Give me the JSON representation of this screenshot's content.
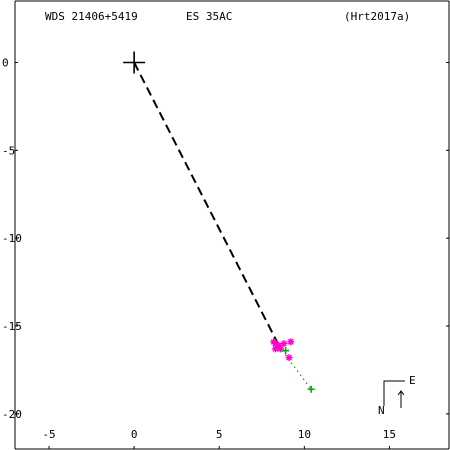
{
  "header": {
    "system": "WDS 21406+5419",
    "discoverer": "ES   35AC",
    "reference": "(Hrt2017a)"
  },
  "compass": {
    "east": "E",
    "north": "N"
  },
  "chart_data": {
    "type": "scatter",
    "title": "",
    "xlabel": "",
    "ylabel": "",
    "xlim": [
      -7,
      18.5
    ],
    "ylim": [
      -22,
      3.5
    ],
    "x_ticks": [
      -5,
      0,
      5,
      10,
      15
    ],
    "y_ticks": [
      0,
      -5,
      -10,
      -15,
      -20
    ],
    "primary": {
      "x": 0,
      "y": 0,
      "marker": "plus"
    },
    "last_position": {
      "x": 8.5,
      "y": -16.1
    },
    "dashed_line": [
      [
        0,
        0
      ],
      [
        8.5,
        -16.1
      ]
    ],
    "dotted_line": [
      [
        8.7,
        -16.4
      ],
      [
        10.4,
        -18.6
      ]
    ],
    "series": [
      {
        "marker": "asterisk",
        "color": "#ff00cc",
        "points": [
          [
            8.3,
            -16.0
          ],
          [
            8.5,
            -16.1
          ],
          [
            8.2,
            -15.9
          ],
          [
            8.6,
            -16.3
          ],
          [
            8.4,
            -16.2
          ],
          [
            8.8,
            -16.0
          ],
          [
            9.2,
            -15.9
          ],
          [
            8.3,
            -16.3
          ],
          [
            9.1,
            -16.8
          ]
        ]
      },
      {
        "marker": "plus",
        "color": "#00aa00",
        "points": [
          [
            8.9,
            -16.4
          ],
          [
            10.4,
            -18.6
          ]
        ]
      }
    ],
    "colors": {
      "axes": "#000000",
      "dashed": "#000000",
      "dotted": "#00aa00"
    }
  }
}
